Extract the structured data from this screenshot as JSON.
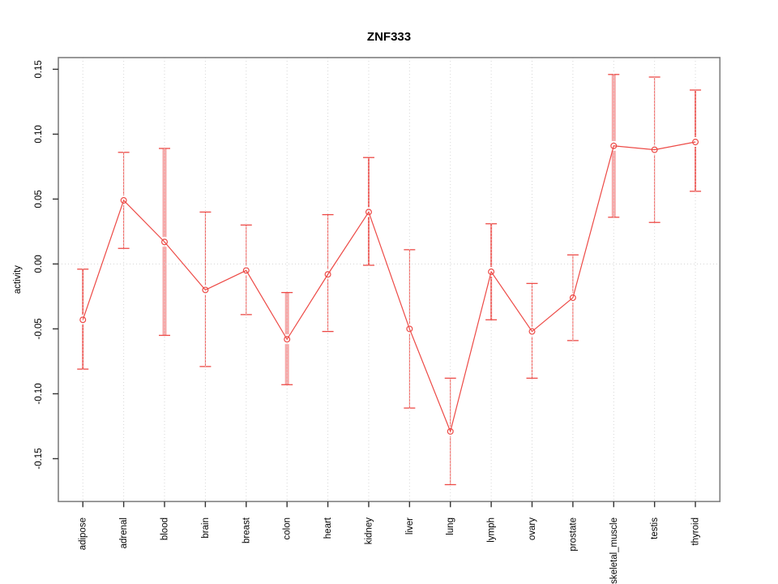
{
  "chart_data": {
    "type": "line",
    "title": "ZNF333",
    "ylabel": "activity",
    "xlabel": "",
    "legend_position": "none",
    "grid": "vertical dotted gridline at each category, dotted horizontal line at y=0",
    "categories": [
      "adipose",
      "adrenal",
      "blood",
      "brain",
      "breast",
      "colon",
      "heart",
      "kidney",
      "liver",
      "lung",
      "lymph",
      "ovary",
      "prostate",
      "skeletal_muscle",
      "testis",
      "thyroid"
    ],
    "series": [
      {
        "name": "activity",
        "values": [
          -0.043,
          0.049,
          0.017,
          -0.02,
          -0.005,
          -0.058,
          -0.008,
          0.04,
          -0.05,
          -0.129,
          -0.006,
          -0.052,
          -0.026,
          0.091,
          0.088,
          0.094
        ],
        "lower": [
          -0.081,
          0.012,
          -0.055,
          -0.079,
          -0.039,
          -0.093,
          -0.052,
          -0.001,
          -0.111,
          -0.17,
          -0.043,
          -0.088,
          -0.059,
          0.036,
          0.032,
          0.056
        ],
        "upper": [
          -0.004,
          0.086,
          0.089,
          0.04,
          0.03,
          -0.022,
          0.038,
          0.082,
          0.011,
          -0.088,
          0.031,
          -0.015,
          0.007,
          0.146,
          0.144,
          0.134
        ]
      }
    ],
    "bar_widths": [
      2,
      1,
      5,
      1,
      1,
      5,
      1,
      2,
      1,
      1,
      2,
      1,
      1,
      5,
      1,
      2
    ],
    "ylim": [
      -0.183,
      0.159
    ],
    "yticks": [
      -0.15,
      -0.1,
      -0.05,
      0.0,
      0.05,
      0.1,
      0.15
    ],
    "ytick_labels": [
      "-0.15",
      "-0.10",
      "-0.05",
      "0.00",
      "0.05",
      "0.10",
      "0.15"
    ],
    "zero_line": true,
    "colors": {
      "line": "#ed4a46",
      "marker": "#ed4a46",
      "thick_bar": "#f6a9a9",
      "grid": "#d6d6d6",
      "box": "#7f7f7f",
      "tick": "#333333",
      "text": "#000000",
      "background": "#ffffff"
    }
  }
}
